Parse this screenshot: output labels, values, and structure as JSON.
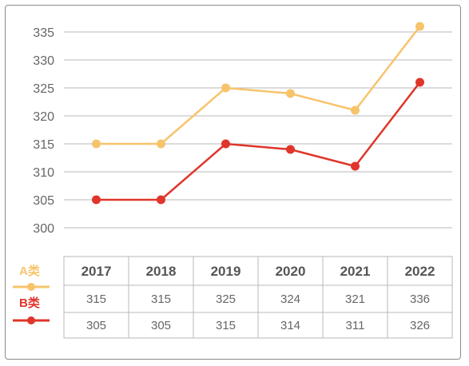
{
  "chart_data": {
    "type": "line",
    "categories": [
      "2017",
      "2018",
      "2019",
      "2020",
      "2021",
      "2022"
    ],
    "ylim": [
      300,
      335
    ],
    "yticks": [
      300,
      305,
      310,
      315,
      320,
      325,
      330,
      335
    ],
    "grid": true,
    "legend_placement": "left of data table",
    "series": [
      {
        "name": "A类",
        "values": [
          315,
          315,
          325,
          324,
          321,
          336
        ],
        "color": "#F7C46C"
      },
      {
        "name": "B类",
        "values": [
          305,
          305,
          315,
          314,
          311,
          326
        ],
        "color": "#E0352B"
      }
    ]
  }
}
